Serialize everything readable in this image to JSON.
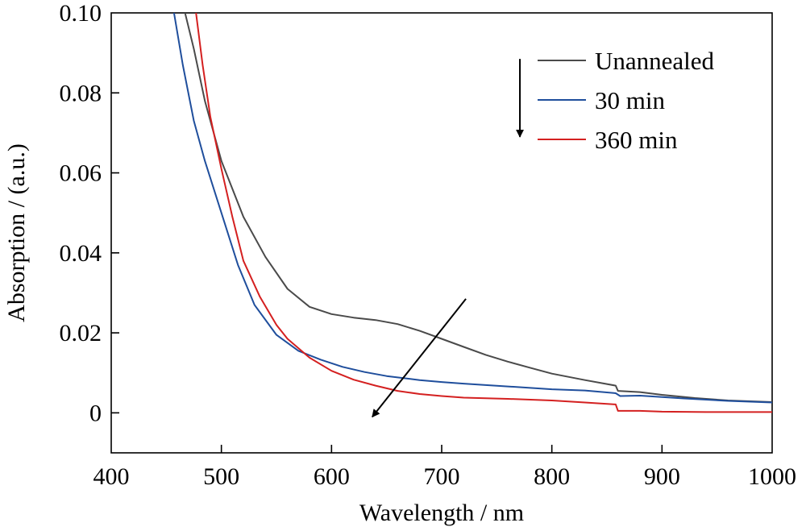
{
  "chart_data": {
    "type": "line",
    "xlabel": "Wavelength / nm",
    "ylabel": "Absorption / (a.u.)",
    "xlim": [
      400,
      1000
    ],
    "ylim": [
      -0.01,
      0.1
    ],
    "x_ticks": [
      400,
      500,
      600,
      700,
      800,
      900,
      1000
    ],
    "x_tick_labels": [
      "400",
      "500",
      "600",
      "700",
      "800",
      "900",
      "1000"
    ],
    "y_ticks": [
      0,
      0.02,
      0.04,
      0.06,
      0.08,
      0.1
    ],
    "y_tick_labels": [
      "0",
      "0.02",
      "0.04",
      "0.06",
      "0.08",
      "0.10"
    ],
    "grid": false,
    "legend_position": "top-right",
    "series": [
      {
        "name": "Unannealed",
        "color": "#4a4a4a",
        "points": [
          [
            467,
            0.1
          ],
          [
            475,
            0.091
          ],
          [
            485,
            0.078
          ],
          [
            500,
            0.063
          ],
          [
            520,
            0.049
          ],
          [
            540,
            0.039
          ],
          [
            560,
            0.031
          ],
          [
            580,
            0.0265
          ],
          [
            600,
            0.0247
          ],
          [
            620,
            0.0238
          ],
          [
            640,
            0.0232
          ],
          [
            660,
            0.0222
          ],
          [
            680,
            0.0205
          ],
          [
            700,
            0.0185
          ],
          [
            720,
            0.0165
          ],
          [
            740,
            0.0145
          ],
          [
            760,
            0.0128
          ],
          [
            780,
            0.0113
          ],
          [
            800,
            0.0098
          ],
          [
            830,
            0.0082
          ],
          [
            858,
            0.0068
          ],
          [
            860,
            0.0055
          ],
          [
            880,
            0.0052
          ],
          [
            900,
            0.0045
          ],
          [
            930,
            0.0037
          ],
          [
            960,
            0.0031
          ],
          [
            1000,
            0.0027
          ]
        ]
      },
      {
        "name": "30 min",
        "color": "#1f4e9c",
        "points": [
          [
            457,
            0.1
          ],
          [
            465,
            0.087
          ],
          [
            475,
            0.073
          ],
          [
            485,
            0.063
          ],
          [
            500,
            0.05
          ],
          [
            515,
            0.037
          ],
          [
            530,
            0.027
          ],
          [
            550,
            0.0195
          ],
          [
            570,
            0.0155
          ],
          [
            590,
            0.0133
          ],
          [
            610,
            0.0115
          ],
          [
            630,
            0.0102
          ],
          [
            650,
            0.0092
          ],
          [
            680,
            0.0082
          ],
          [
            700,
            0.0077
          ],
          [
            720,
            0.0073
          ],
          [
            760,
            0.0066
          ],
          [
            800,
            0.0059
          ],
          [
            830,
            0.0056
          ],
          [
            858,
            0.0049
          ],
          [
            862,
            0.0042
          ],
          [
            880,
            0.0043
          ],
          [
            920,
            0.0036
          ],
          [
            960,
            0.003
          ],
          [
            1000,
            0.0026
          ]
        ]
      },
      {
        "name": "360 min",
        "color": "#d42020",
        "points": [
          [
            477,
            0.1
          ],
          [
            483,
            0.087
          ],
          [
            490,
            0.074
          ],
          [
            500,
            0.061
          ],
          [
            510,
            0.049
          ],
          [
            520,
            0.038
          ],
          [
            535,
            0.029
          ],
          [
            550,
            0.022
          ],
          [
            560,
            0.0185
          ],
          [
            580,
            0.0138
          ],
          [
            600,
            0.0105
          ],
          [
            620,
            0.0083
          ],
          [
            640,
            0.0068
          ],
          [
            660,
            0.0055
          ],
          [
            680,
            0.0047
          ],
          [
            700,
            0.0042
          ],
          [
            720,
            0.0038
          ],
          [
            760,
            0.0035
          ],
          [
            800,
            0.0031
          ],
          [
            830,
            0.0026
          ],
          [
            858,
            0.0021
          ],
          [
            860,
            0.0005
          ],
          [
            880,
            0.0005
          ],
          [
            900,
            0.0003
          ],
          [
            940,
            0.0002
          ],
          [
            1000,
            0.0002
          ]
        ]
      }
    ],
    "annotations": [
      {
        "type": "arrow",
        "from": [
          722,
          0.0285
        ],
        "to": [
          637,
          -0.001
        ]
      },
      {
        "type": "arrow",
        "legend_arrow": true,
        "from": [
          771,
          0.0885
        ],
        "to": [
          771,
          0.069
        ]
      }
    ]
  }
}
